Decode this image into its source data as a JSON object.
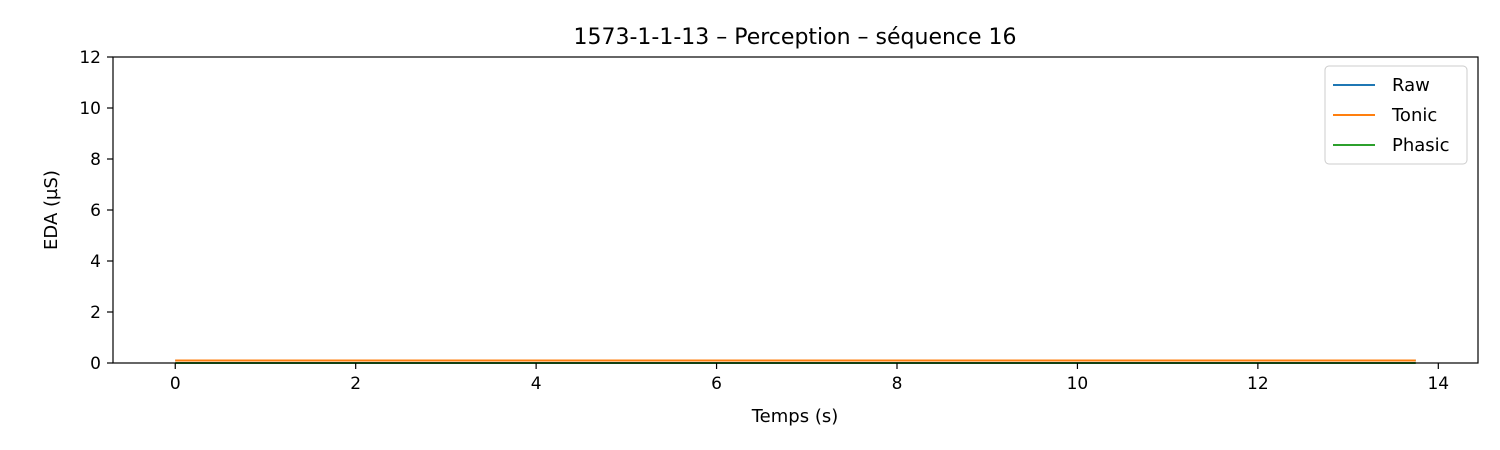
{
  "chart_data": {
    "type": "line",
    "title": "1573-1-1-13 – Perception – séquence 16",
    "xlabel": "Temps (s)",
    "ylabel": "EDA (µS)",
    "xlim": [
      -0.69,
      14.44
    ],
    "ylim": [
      0,
      12
    ],
    "xticks": [
      0,
      2,
      4,
      6,
      8,
      10,
      12,
      14
    ],
    "yticks": [
      0,
      2,
      4,
      6,
      8,
      10,
      12
    ],
    "grid": false,
    "legend_position": "top-right",
    "x": [
      0,
      13.75
    ],
    "series": [
      {
        "name": "Raw",
        "color": "#1f77b4",
        "values": [
          0.1,
          0.1
        ]
      },
      {
        "name": "Tonic",
        "color": "#ff7f0e",
        "values": [
          0.1,
          0.1
        ]
      },
      {
        "name": "Phasic",
        "color": "#2ca02c",
        "values": [
          0.0,
          0.0
        ]
      }
    ]
  }
}
